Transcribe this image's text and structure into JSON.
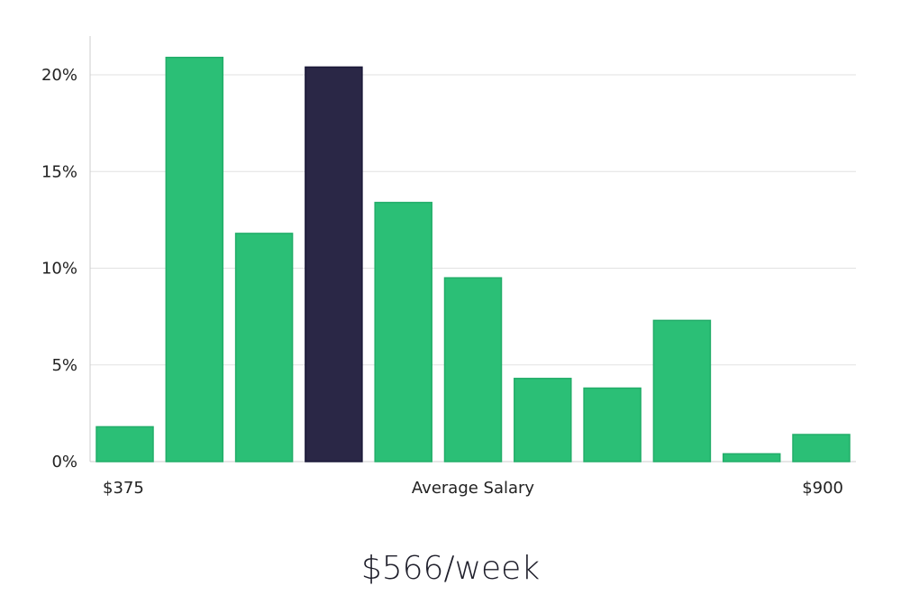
{
  "chart_data": {
    "type": "bar",
    "values": [
      1.8,
      20.9,
      11.8,
      20.4,
      13.4,
      9.5,
      4.3,
      3.8,
      7.3,
      0.4,
      1.4
    ],
    "highlight_index": 3,
    "y_ticks": [
      "0%",
      "5%",
      "10%",
      "15%",
      "20%"
    ],
    "y_tick_values": [
      0,
      5,
      10,
      15,
      20
    ],
    "ylim": [
      0,
      22
    ],
    "x_labels": {
      "start": "$375",
      "center": "Average Salary",
      "end": "$900"
    },
    "grid": true,
    "colors": {
      "bar": "#2bbf76",
      "highlight": "#2a2746"
    }
  },
  "headline": "$566/week"
}
